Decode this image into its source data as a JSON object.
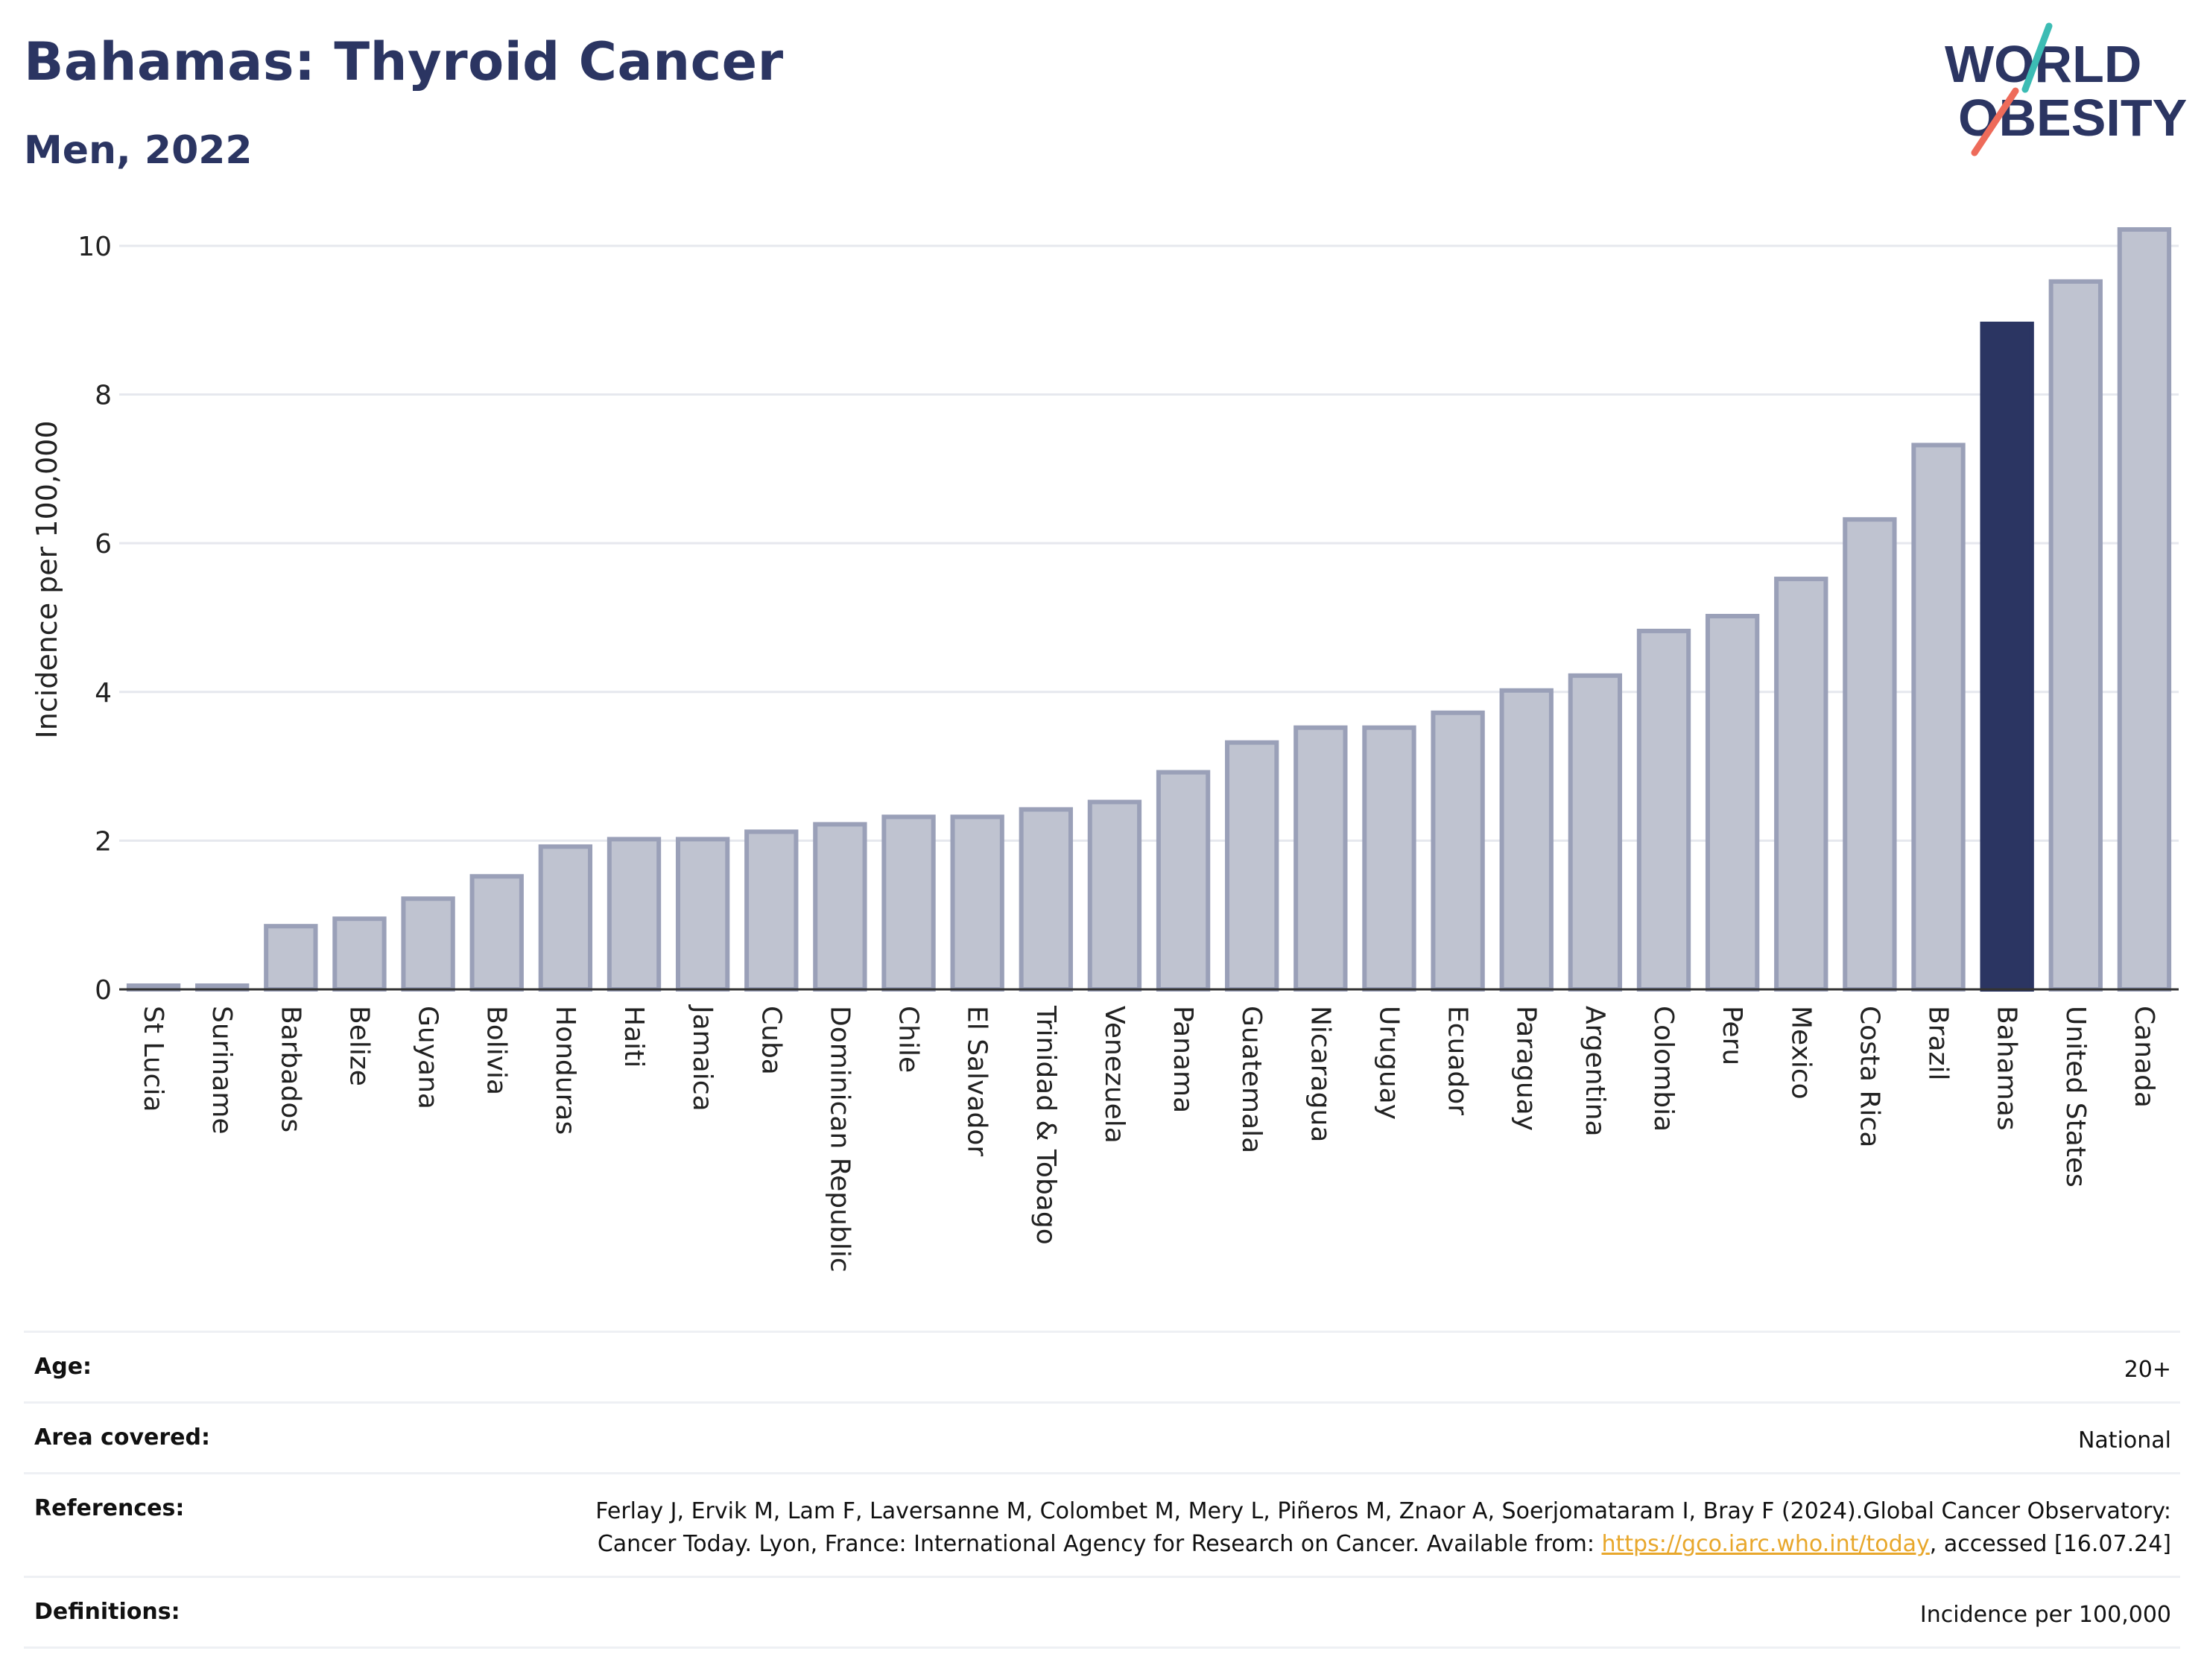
{
  "header": {
    "title": "Bahamas: Thyroid Cancer",
    "subtitle": "Men, 2022"
  },
  "logo": {
    "line1": "WORLD",
    "line2": "OBESITY"
  },
  "chart_data": {
    "type": "bar",
    "ylabel": "Incidence per 100,000",
    "ylim": [
      0,
      10.3
    ],
    "yticks": [
      0,
      2,
      4,
      6,
      8,
      10
    ],
    "grid": true,
    "categories": [
      "St Lucia",
      "Suriname",
      "Barbados",
      "Belize",
      "Guyana",
      "Bolivia",
      "Honduras",
      "Haiti",
      "Jamaica",
      "Cuba",
      "Dominican Republic",
      "Chile",
      "El Salvador",
      "Trinidad & Tobago",
      "Venezuela",
      "Panama",
      "Guatemala",
      "Nicaragua",
      "Uruguay",
      "Ecuador",
      "Paraguay",
      "Argentina",
      "Colombia",
      "Peru",
      "Mexico",
      "Costa Rica",
      "Brazil",
      "Bahamas",
      "United States",
      "Canada"
    ],
    "values": [
      0.05,
      0.05,
      0.85,
      0.95,
      1.22,
      1.52,
      1.92,
      2.02,
      2.02,
      2.12,
      2.22,
      2.32,
      2.32,
      2.42,
      2.52,
      2.92,
      3.32,
      3.52,
      3.52,
      3.72,
      4.02,
      4.22,
      4.82,
      5.02,
      5.52,
      6.32,
      7.32,
      8.95,
      9.52,
      10.22
    ],
    "highlight": "Bahamas",
    "colors": {
      "bar": "#bfc3d0",
      "bar_border": "#9aa0b8",
      "highlight": "#2b3562",
      "grid": "#e6e8ee"
    }
  },
  "meta": {
    "age_label": "Age:",
    "age_value": "20+",
    "area_label": "Area covered:",
    "area_value": "National",
    "references_label": "References:",
    "references_text_1": "Ferlay J, Ervik M, Lam F, Laversanne M, Colombet M, Mery L, Piñeros M, Znaor A, Soerjomataram I, Bray F (2024).Global Cancer Observatory: Cancer Today. Lyon, France: International Agency for Research on Cancer. Available from: ",
    "references_link": "https://gco.iarc.who.int/today",
    "references_text_2": ", accessed [16.07.24]",
    "definitions_label": "Definitions:",
    "definitions_value": "Incidence per 100,000"
  }
}
